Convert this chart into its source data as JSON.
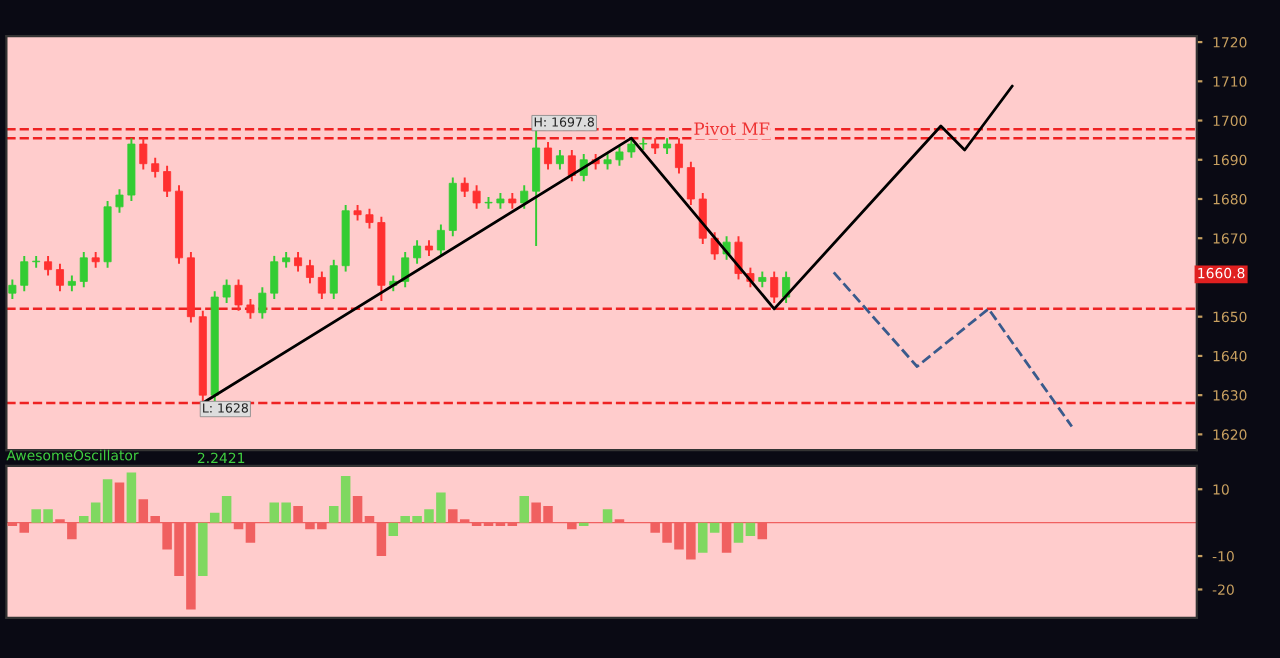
{
  "chart_data": [
    {
      "type": "candlestick",
      "categories": [
        null,
        null,
        null,
        null,
        null,
        null,
        null,
        null,
        null,
        null,
        null,
        null,
        null,
        null,
        null,
        null,
        null,
        null,
        null,
        null,
        null,
        null,
        null,
        null,
        null,
        null,
        null,
        null,
        null,
        null,
        null,
        null,
        null,
        null,
        null,
        null,
        null,
        null,
        null,
        null,
        null,
        null,
        null,
        null,
        null,
        null,
        null,
        null,
        null,
        null,
        null,
        null,
        null,
        null,
        null,
        null,
        null,
        null,
        null,
        null,
        null,
        null,
        null,
        null,
        null,
        null,
        null,
        null,
        null,
        null,
        null,
        null,
        null,
        null,
        null,
        null,
        null,
        null,
        null,
        null,
        null,
        null,
        null,
        null,
        null,
        null,
        null,
        null,
        null,
        null,
        null,
        null,
        null,
        null,
        null,
        null,
        null,
        null,
        null,
        null
      ],
      "ohlc": [
        [
          1656,
          1659.5,
          1654.5,
          1658
        ],
        [
          1658,
          1665.5,
          1656.5,
          1664
        ],
        [
          1664,
          1665.5,
          1662.5,
          1664
        ],
        [
          1664,
          1665.5,
          1660.5,
          1662
        ],
        [
          1662,
          1663.5,
          1656.5,
          1658
        ],
        [
          1658,
          1660.5,
          1656.5,
          1659
        ],
        [
          1659,
          1666.5,
          1657.5,
          1665
        ],
        [
          1665,
          1666.5,
          1662.5,
          1664
        ],
        [
          1664,
          1679.5,
          1662.5,
          1678
        ],
        [
          1678,
          1682.5,
          1676.5,
          1681
        ],
        [
          1681,
          1695.5,
          1679.5,
          1694
        ],
        [
          1694,
          1695.5,
          1687.5,
          1689
        ],
        [
          1689,
          1690.5,
          1685.5,
          1687
        ],
        [
          1687,
          1688.5,
          1680.5,
          1682
        ],
        [
          1682,
          1683.5,
          1663.5,
          1665
        ],
        [
          1665,
          1666.5,
          1648.5,
          1650
        ],
        [
          1650,
          1651.5,
          1628,
          1630
        ],
        [
          1630,
          1656.5,
          1628.5,
          1655
        ],
        [
          1655,
          1659.5,
          1653.5,
          1658
        ],
        [
          1658,
          1659.5,
          1651.5,
          1653
        ],
        [
          1653,
          1654.5,
          1649.5,
          1651
        ],
        [
          1651,
          1657.5,
          1649.5,
          1656
        ],
        [
          1656,
          1665.5,
          1654.5,
          1664
        ],
        [
          1664,
          1666.5,
          1662.5,
          1665
        ],
        [
          1665,
          1666.5,
          1661.5,
          1663
        ],
        [
          1663,
          1664.5,
          1658.5,
          1660
        ],
        [
          1660,
          1661.5,
          1654.5,
          1656
        ],
        [
          1656,
          1664.5,
          1654.5,
          1663
        ],
        [
          1663,
          1678.5,
          1661.5,
          1677
        ],
        [
          1677,
          1678.5,
          1674.5,
          1676
        ],
        [
          1676,
          1677.5,
          1672.5,
          1674
        ],
        [
          1674,
          1675.5,
          1654,
          1658
        ],
        [
          1658,
          1660.5,
          1656.5,
          1659
        ],
        [
          1659,
          1666.5,
          1657.5,
          1665
        ],
        [
          1665,
          1669.5,
          1663.5,
          1668
        ],
        [
          1668,
          1669.5,
          1665.5,
          1667
        ],
        [
          1667,
          1673.5,
          1665.5,
          1672
        ],
        [
          1672,
          1685.5,
          1670.5,
          1684
        ],
        [
          1684,
          1685.5,
          1680.5,
          1682
        ],
        [
          1682,
          1683.5,
          1677.5,
          1679
        ],
        [
          1679,
          1680.5,
          1677.5,
          1679
        ],
        [
          1679,
          1681.5,
          1677.5,
          1680
        ],
        [
          1680,
          1681.5,
          1677.5,
          1679
        ],
        [
          1679,
          1683.5,
          1677.5,
          1682
        ],
        [
          1682,
          1697.8,
          1668,
          1693
        ],
        [
          1693,
          1694.5,
          1687.5,
          1689
        ],
        [
          1689,
          1692.5,
          1687.5,
          1691
        ],
        [
          1691,
          1692.5,
          1684.5,
          1686
        ],
        [
          1686,
          1691.5,
          1684.5,
          1690
        ],
        [
          1690,
          1691.5,
          1687.5,
          1689
        ],
        [
          1689,
          1691.5,
          1687.5,
          1690
        ],
        [
          1690,
          1693.5,
          1688.5,
          1692
        ],
        [
          1692,
          1695.5,
          1690.5,
          1694
        ],
        [
          1694,
          1695.5,
          1692.5,
          1694
        ],
        [
          1694,
          1695.5,
          1691.5,
          1693
        ],
        [
          1693,
          1695.5,
          1691.5,
          1694
        ],
        [
          1694,
          1695.5,
          1686.5,
          1688
        ],
        [
          1688,
          1689.5,
          1678.5,
          1680
        ],
        [
          1680,
          1681.5,
          1668.5,
          1670
        ],
        [
          1670,
          1671.5,
          1664.5,
          1666
        ],
        [
          1666,
          1670.5,
          1664.5,
          1669
        ],
        [
          1669,
          1670.5,
          1659.5,
          1661
        ],
        [
          1661,
          1662.5,
          1657.5,
          1659
        ],
        [
          1659,
          1661.5,
          1657.5,
          1660
        ],
        [
          1660,
          1661.5,
          1653.5,
          1655
        ],
        [
          1655,
          1661.5,
          1653.5,
          1660
        ],
        null,
        null,
        null,
        null,
        null,
        null,
        null,
        null,
        null,
        null,
        null,
        null,
        null,
        null,
        null,
        null,
        null,
        null,
        null,
        null,
        null,
        null,
        null,
        null,
        null,
        null,
        null,
        null,
        null,
        null,
        null,
        null,
        null,
        null
      ],
      "series": [
        {
          "type": "line",
          "color": "#000000",
          "line_style": "solid",
          "values": [
            null,
            null,
            null,
            null,
            null,
            null,
            null,
            null,
            null,
            null,
            null,
            null,
            null,
            null,
            null,
            null,
            1628,
            null,
            null,
            null,
            null,
            null,
            null,
            null,
            null,
            null,
            null,
            null,
            null,
            null,
            null,
            null,
            null,
            null,
            null,
            null,
            null,
            null,
            null,
            null,
            null,
            null,
            null,
            null,
            null,
            null,
            null,
            null,
            null,
            null,
            null,
            null,
            1695.5,
            null,
            null,
            null,
            null,
            null,
            null,
            null,
            null,
            null,
            null,
            null,
            1652,
            null,
            null,
            null,
            null,
            null,
            null,
            null,
            null,
            null,
            null,
            null,
            null,
            null,
            1698.6,
            null,
            1692.5,
            null,
            null,
            null,
            1708.8,
            null,
            null,
            null,
            null,
            null,
            null,
            null,
            null,
            null,
            null,
            null,
            null,
            null,
            null,
            null
          ]
        },
        {
          "type": "line",
          "color": "#3a5a8c",
          "line_style": "dashed",
          "values": [
            null,
            null,
            null,
            null,
            null,
            null,
            null,
            null,
            null,
            null,
            null,
            null,
            null,
            null,
            null,
            null,
            null,
            null,
            null,
            null,
            null,
            null,
            null,
            null,
            null,
            null,
            null,
            null,
            null,
            null,
            null,
            null,
            null,
            null,
            null,
            null,
            null,
            null,
            null,
            null,
            null,
            null,
            null,
            null,
            null,
            null,
            null,
            null,
            null,
            null,
            null,
            null,
            null,
            null,
            null,
            null,
            null,
            null,
            null,
            null,
            null,
            null,
            null,
            null,
            null,
            null,
            null,
            null,
            null,
            1661.3,
            null,
            null,
            null,
            null,
            null,
            null,
            1637.3,
            null,
            null,
            null,
            null,
            null,
            1652,
            null,
            null,
            null,
            null,
            null,
            null,
            1622,
            null,
            null,
            null,
            null,
            null,
            null,
            null,
            null,
            null,
            null
          ]
        }
      ],
      "ref_lines": [
        {
          "axis": "y",
          "value": 1697.8,
          "label": "H: 1697.8",
          "color": "#ee2222",
          "line_style": "dashed"
        },
        {
          "axis": "y",
          "value": 1695.5,
          "label": "Pivot MF",
          "color": "#ee2222",
          "line_style": "dashed"
        },
        {
          "axis": "y",
          "value": 1652,
          "color": "#ee2222",
          "line_style": "dashed"
        },
        {
          "axis": "y",
          "value": 1628,
          "label": "L: 1628",
          "color": "#ee2222",
          "line_style": "dashed"
        }
      ],
      "annotations": [
        {
          "text": "1660.8",
          "y": 1660.8
        }
      ],
      "ylim": [
        1616,
        1721.5
      ],
      "yticks": [
        1620,
        1630,
        1640,
        1650,
        1670,
        1680,
        1690,
        1700,
        1710,
        1720
      ],
      "tick_labels": "y",
      "grid": false,
      "legend": false
    },
    {
      "type": "bar",
      "title": "AwesomeOscillator",
      "annotations": [
        "2.2421"
      ],
      "categories": [
        null,
        null,
        null,
        null,
        null,
        null,
        null,
        null,
        null,
        null,
        null,
        null,
        null,
        null,
        null,
        null,
        null,
        null,
        null,
        null,
        null,
        null,
        null,
        null,
        null,
        null,
        null,
        null,
        null,
        null,
        null,
        null,
        null,
        null,
        null,
        null,
        null,
        null,
        null,
        null,
        null,
        null,
        null,
        null,
        null,
        null,
        null,
        null,
        null,
        null,
        null,
        null,
        null,
        null,
        null,
        null,
        null,
        null,
        null,
        null,
        null,
        null,
        null,
        null,
        null,
        null,
        null,
        null,
        null,
        null,
        null,
        null,
        null,
        null,
        null,
        null,
        null,
        null,
        null,
        null,
        null,
        null,
        null,
        null,
        null,
        null,
        null,
        null,
        null,
        null,
        null,
        null,
        null,
        null,
        null,
        null,
        null,
        null,
        null,
        null
      ],
      "values": [
        -1,
        -3,
        4,
        4,
        1,
        -5,
        2,
        6,
        13,
        12,
        15,
        7,
        2,
        -8,
        -16,
        -26,
        -16,
        3,
        8,
        -2,
        -6,
        0,
        6,
        6,
        5,
        -2,
        -2,
        5,
        14,
        8,
        2,
        -10,
        -4,
        2,
        2,
        4,
        9,
        4,
        1,
        -1,
        -1,
        -1,
        -1,
        8,
        6,
        5,
        0,
        -2,
        -1,
        0,
        4,
        1,
        0,
        0,
        -3,
        -6,
        -8,
        -11,
        -9,
        -3,
        -9,
        -6,
        -4,
        -5,
        0,
        null,
        null,
        null,
        null,
        null,
        null,
        null,
        null,
        null,
        null,
        null,
        null,
        null,
        null,
        null,
        null,
        null,
        null,
        null,
        null,
        null,
        null,
        null,
        null,
        null,
        null,
        null,
        null,
        null,
        null,
        null,
        null,
        null,
        null,
        null
      ],
      "colors": [
        "#f06060",
        "#f06060",
        "#7fd860",
        "#7fd860",
        "#f06060",
        "#f06060",
        "#7fd860",
        "#7fd860",
        "#7fd860",
        "#f06060",
        "#7fd860",
        "#f06060",
        "#f06060",
        "#f06060",
        "#f06060",
        "#f06060",
        "#7fd860",
        "#7fd860",
        "#7fd860",
        "#f06060",
        "#f06060",
        "#7fd860",
        "#7fd860",
        "#7fd860",
        "#f06060",
        "#f06060",
        "#f06060",
        "#7fd860",
        "#7fd860",
        "#f06060",
        "#f06060",
        "#f06060",
        "#7fd860",
        "#7fd860",
        "#7fd860",
        "#7fd860",
        "#7fd860",
        "#f06060",
        "#f06060",
        "#f06060",
        "#f06060",
        "#f06060",
        "#f06060",
        "#7fd860",
        "#f06060",
        "#f06060",
        "#f06060",
        "#f06060",
        "#7fd860",
        "#7fd860",
        "#7fd860",
        "#f06060",
        "#f06060",
        "#f06060",
        "#f06060",
        "#f06060",
        "#f06060",
        "#f06060",
        "#7fd860",
        "#7fd860",
        "#f06060",
        "#7fd860",
        "#7fd860",
        "#f06060",
        "#7fd860",
        null,
        null,
        null,
        null,
        null,
        null,
        null,
        null,
        null,
        null,
        null,
        null,
        null,
        null,
        null,
        null,
        null,
        null,
        null,
        null,
        null,
        null,
        null,
        null,
        null,
        null,
        null,
        null,
        null,
        null,
        null,
        null,
        null,
        null,
        null
      ],
      "ref_lines": [
        {
          "axis": "y",
          "value": 0,
          "color": "#f06060",
          "line_style": "solid"
        }
      ],
      "ylim": [
        -28.5,
        17
      ],
      "yticks": [
        -20,
        -10,
        10
      ],
      "tick_labels": "y",
      "grid": false,
      "legend": false
    }
  ]
}
